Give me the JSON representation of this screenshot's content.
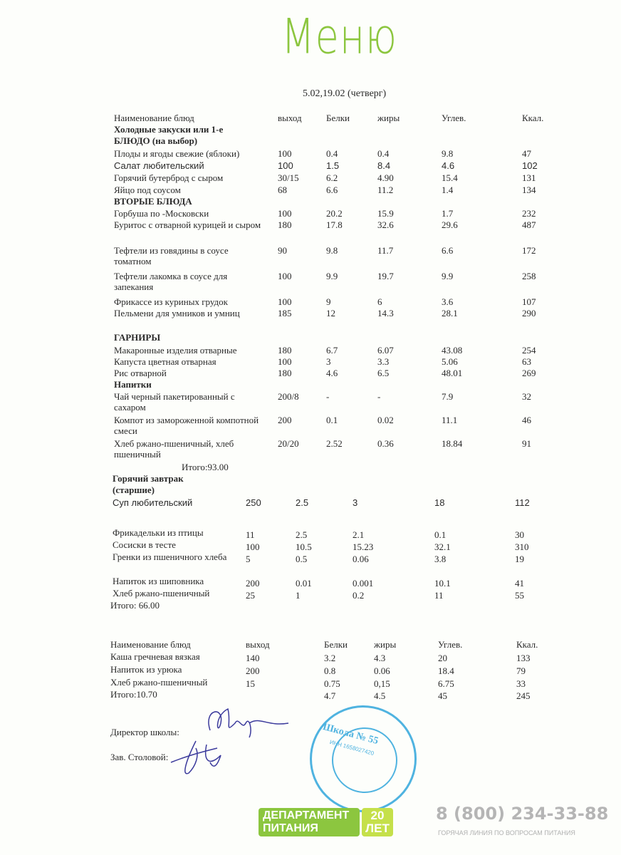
{
  "title": "Меню",
  "date": "5.02,19.02 (четверг)",
  "headers": [
    "Наименование блюд",
    "выход",
    "Белки",
    "жиры",
    "Углев.",
    "Ккал."
  ],
  "section1": [
    {
      "type": "heading",
      "name": "Холодные закуски или 1-е"
    },
    {
      "type": "heading",
      "name": "БЛЮДО  (на выбор)"
    },
    {
      "name": "Плоды и ягоды свежие  (яблоки)",
      "values": [
        "100",
        "0.4",
        "0.4",
        "9.8",
        "47"
      ]
    },
    {
      "name": "Салат любительский",
      "values": [
        "100",
        "1.5",
        "8.4",
        "4.6",
        "102"
      ],
      "sans": true
    },
    {
      "name": "Горячий бутерброд с сыром",
      "values": [
        "30/15",
        "6.2",
        "4.90",
        "15.4",
        "131"
      ]
    },
    {
      "name": "Яйцо под соусом",
      "values": [
        "68",
        "6.6",
        "11.2",
        "1.4",
        "134"
      ]
    },
    {
      "type": "heading",
      "name": "ВТОРЫЕ БЛЮДА"
    },
    {
      "name": "Горбуша  по -Московски",
      "values": [
        "100",
        "20.2",
        "15.9",
        "1.7",
        "232"
      ]
    },
    {
      "name": "Буритос с отварной курицей и сыром",
      "values": [
        "180",
        "17.8",
        "32.6",
        "29.6",
        "487"
      ]
    },
    {
      "name": "Тефтели из говядины в соусе томатном",
      "values": [
        "90",
        "9.8",
        "11.7",
        "6.6",
        "172"
      ]
    },
    {
      "name": "Тефтели лакомка в соусе для запекания",
      "values": [
        "100",
        "9.9",
        "19.7",
        "9.9",
        "258"
      ]
    },
    {
      "name": "Фрикассе из куриных грудок",
      "values": [
        "100",
        "9",
        "6",
        "3.6",
        "107"
      ]
    },
    {
      "name": "Пельмени для умников и умниц",
      "values": [
        "185",
        "12",
        "14.3",
        "28.1",
        "290"
      ]
    },
    {
      "type": "heading",
      "name": "ГАРНИРЫ"
    },
    {
      "name": "Макаронные изделия   отварные",
      "values": [
        "180",
        "6.7",
        "6.07",
        "43.08",
        "254"
      ]
    },
    {
      "name": "Капуста цветная отварная",
      "values": [
        "100",
        "3",
        "3.3",
        "5.06",
        "63"
      ]
    },
    {
      "name": "Рис отварной",
      "values": [
        "180",
        "4.6",
        "6.5",
        "48.01",
        "269"
      ]
    },
    {
      "type": "heading",
      "name": "Напитки"
    },
    {
      "name": "Чай черный пакетированный с сахаром",
      "values": [
        "200/8",
        "-",
        "-",
        "7.9",
        "32"
      ]
    },
    {
      "name": "Компот из замороженной компотной смеси",
      "values": [
        "200",
        "0.1",
        "0.02",
        "11.1",
        "46"
      ]
    },
    {
      "name": "Хлеб ржано-пшеничный, хлеб пшеничный",
      "values": [
        "20/20",
        "2.52",
        "0.36",
        "18.84",
        "91"
      ]
    }
  ],
  "total1": "Итого:93.00",
  "section2": [
    {
      "type": "heading",
      "name": "Горячий завтрак"
    },
    {
      "type": "heading",
      "name": "(старшие)"
    },
    {
      "name": "Суп любительский",
      "values": [
        "250",
        "2.5",
        "3",
        "18",
        "112"
      ],
      "sans": true
    },
    {
      "name": "Фрикадельки из птицы",
      "values": [
        "11",
        "2.5",
        "2.1",
        "0.1",
        "30"
      ]
    },
    {
      "name": "Сосиски  в тесте",
      "values": [
        "100",
        "10.5",
        "15.23",
        "32.1",
        "310"
      ]
    },
    {
      "name": "Гренки из пшеничного хлеба",
      "values": [
        "5",
        "0.5",
        "0.06",
        "3.8",
        "19"
      ]
    },
    {
      "name": "Напиток из шиповника",
      "values": [
        "200",
        "0.01",
        "0.001",
        "10.1",
        "41"
      ]
    },
    {
      "name": "Хлеб ржано-пшеничный",
      "values": [
        "25",
        "1",
        "0.2",
        "11",
        "55"
      ]
    }
  ],
  "total2": "Итого: 66.00",
  "section3": [
    {
      "name": "Каша гречневая вязкая",
      "values": [
        "140",
        "3.2",
        "4.3",
        "20",
        "133"
      ]
    },
    {
      "name": "Напиток из урюка",
      "values": [
        "200",
        "0.8",
        "0.06",
        "18.4",
        "79"
      ]
    },
    {
      "name": "Хлеб ржано-пшеничный",
      "values": [
        "15",
        "0.75",
        "0,15",
        "6.75",
        "33"
      ]
    },
    {
      "name": "Итого:10.70",
      "values": [
        "",
        "4.7",
        "4.5",
        "45",
        "245"
      ]
    }
  ],
  "signatures": {
    "director": "Директор школы:",
    "canteen": "Зав. Столовой:"
  },
  "stamp": {
    "name": "Школа № 55",
    "inn": "ИНН 1658027420"
  },
  "footer": {
    "logo_line1": "ДЕПАРТАМЕНТ",
    "logo_line2": "ПИТАНИЯ",
    "logo_years": "20 ЛЕТ",
    "phone": "8 (800) 234-33-88",
    "hotline": "ГОРЯЧАЯ ЛИНИЯ ПО ВОПРОСАМ ПИТАНИЯ"
  },
  "colors": {
    "title": "#8cc63f",
    "stamp": "#4fb3e0",
    "signature": "#3b3a9c"
  }
}
